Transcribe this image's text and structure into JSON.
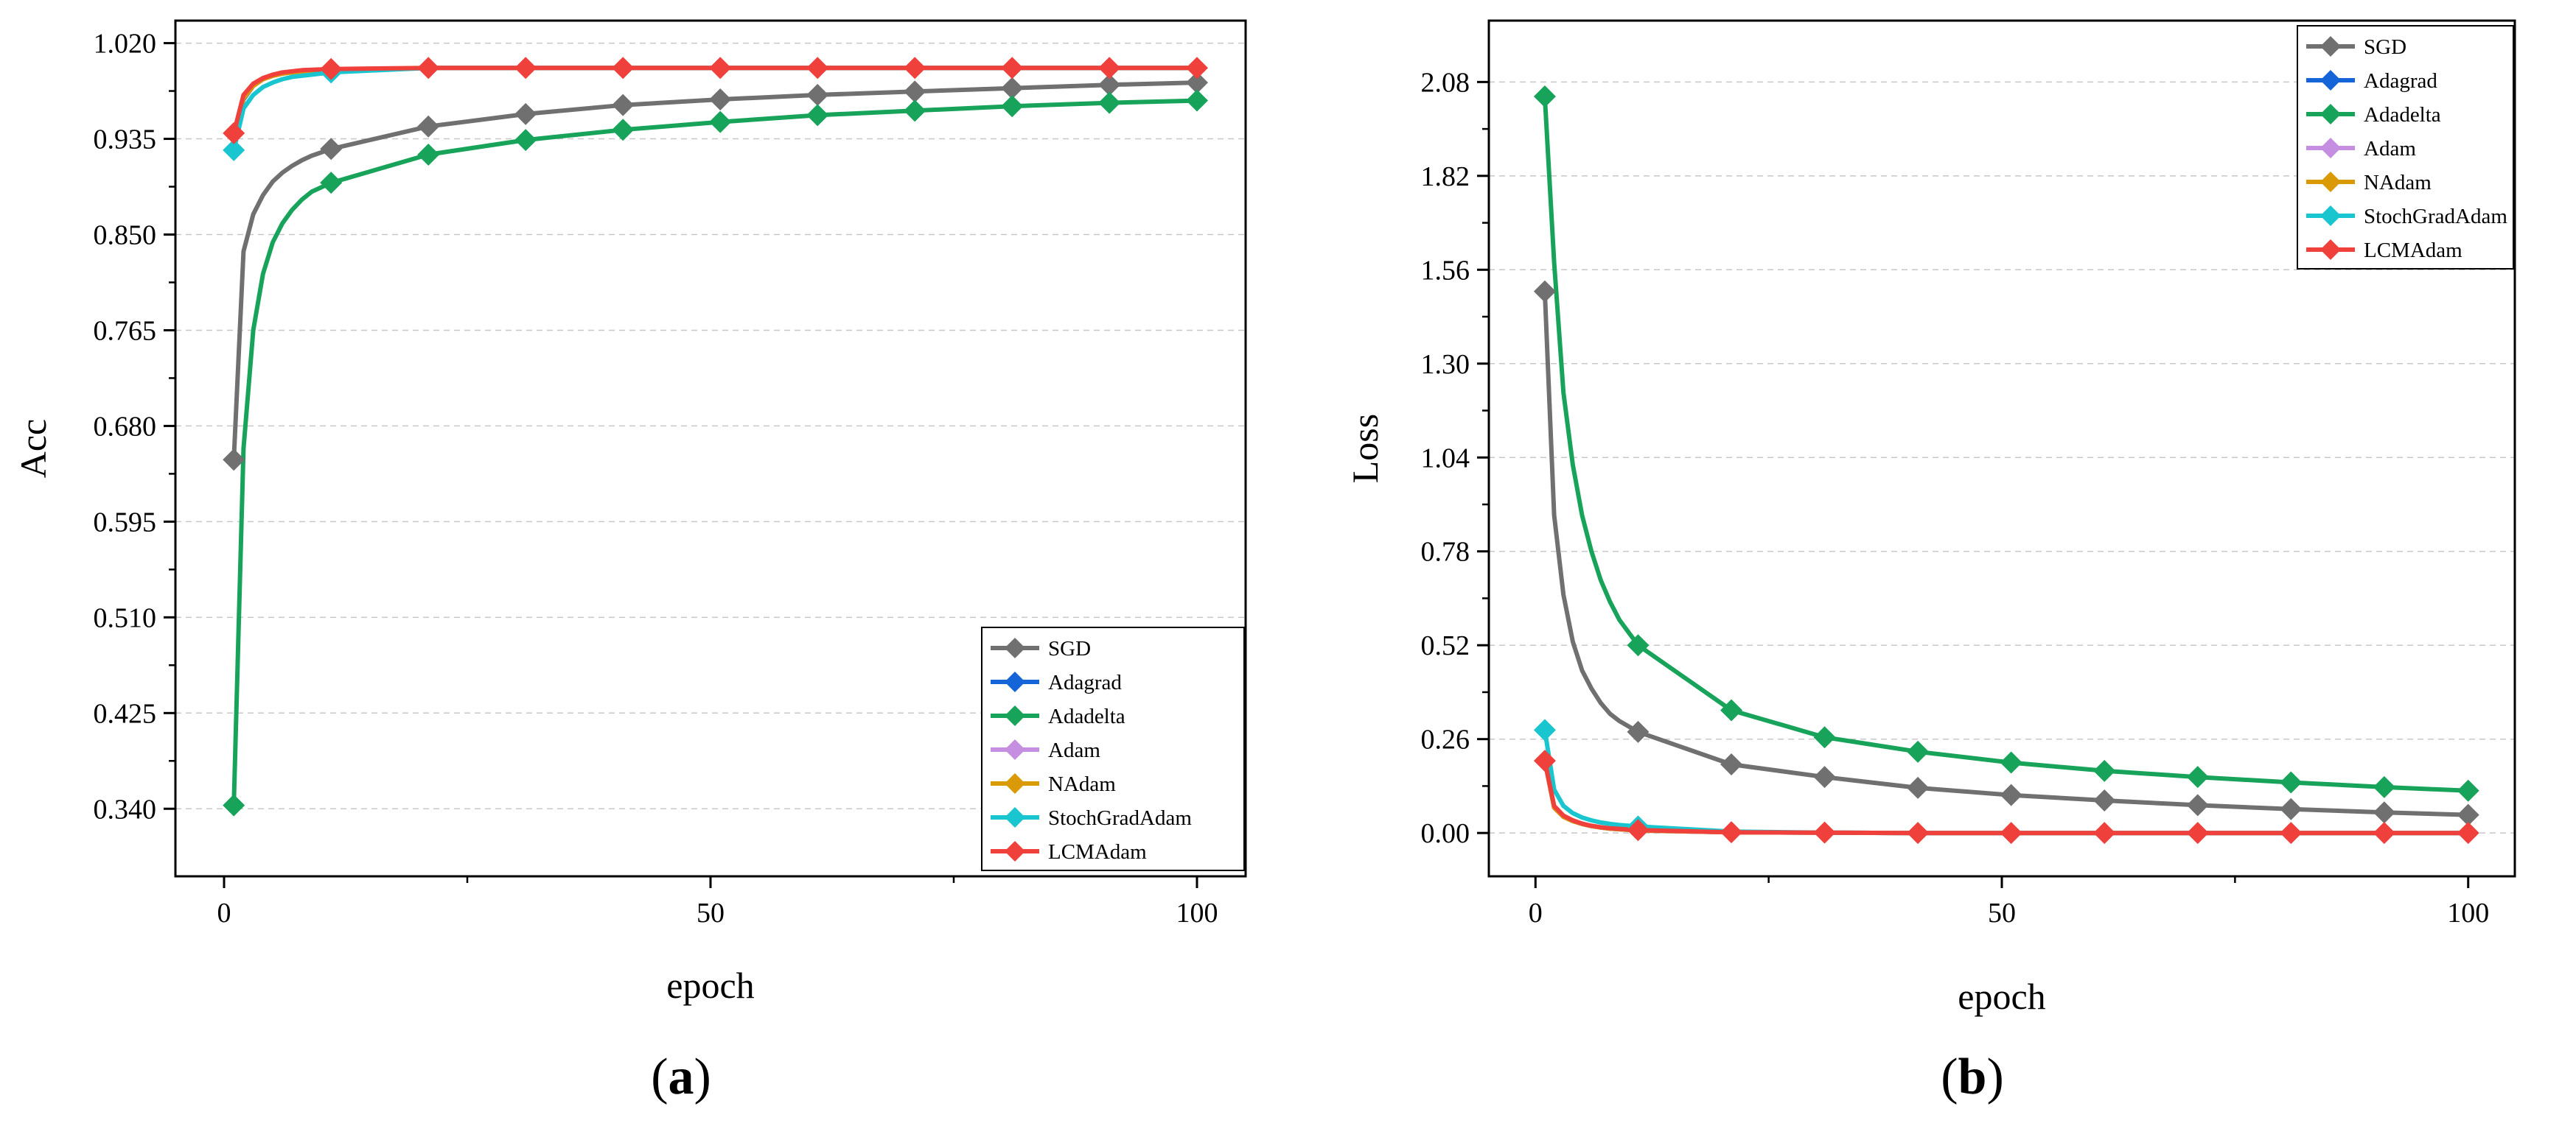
{
  "chart_data": [
    {
      "type": "line",
      "panel": "(a)",
      "panel_letter": "a",
      "xlabel": "epoch",
      "ylabel": "Acc",
      "xlim": [
        -5,
        105
      ],
      "ylim": [
        0.28,
        1.04
      ],
      "x_ticks": [
        0,
        50,
        100
      ],
      "y_ticks": [
        0.34,
        0.425,
        0.51,
        0.595,
        0.68,
        0.765,
        0.85,
        0.935,
        1.02
      ],
      "y_tick_labels": [
        "0.340",
        "0.425",
        "0.510",
        "0.595",
        "0.680",
        "0.765",
        "0.850",
        "0.935",
        "1.020"
      ],
      "grid": true,
      "legend_position": "bottom-right",
      "series": [
        {
          "name": "SGD",
          "color": "#707070",
          "x": [
            1,
            2,
            3,
            4,
            5,
            6,
            7,
            8,
            9,
            11,
            21,
            31,
            41,
            51,
            61,
            71,
            81,
            91,
            100
          ],
          "y": [
            0.65,
            0.835,
            0.868,
            0.885,
            0.897,
            0.905,
            0.911,
            0.916,
            0.92,
            0.926,
            0.946,
            0.957,
            0.965,
            0.97,
            0.974,
            0.977,
            0.98,
            0.983,
            0.985
          ],
          "markers": [
            0,
            9,
            10,
            11,
            12,
            13,
            14,
            15,
            16,
            17,
            18
          ]
        },
        {
          "name": "Adagrad",
          "color": "#1565d8",
          "x": [
            1,
            2,
            3,
            4,
            5,
            6,
            7,
            8,
            11,
            21,
            31,
            41,
            51,
            61,
            71,
            81,
            91,
            100
          ],
          "y": [
            0.94,
            0.97,
            0.982,
            0.988,
            0.991,
            0.993,
            0.994,
            0.995,
            0.996,
            0.998,
            0.998,
            0.998,
            0.998,
            0.998,
            0.998,
            0.998,
            0.998,
            0.998
          ],
          "markers": []
        },
        {
          "name": "Adadelta",
          "color": "#17a45a",
          "x": [
            1,
            2,
            3,
            4,
            5,
            6,
            7,
            8,
            9,
            11,
            21,
            31,
            41,
            51,
            61,
            71,
            81,
            91,
            100
          ],
          "y": [
            0.343,
            0.66,
            0.765,
            0.815,
            0.843,
            0.86,
            0.872,
            0.881,
            0.888,
            0.896,
            0.921,
            0.934,
            0.943,
            0.95,
            0.956,
            0.96,
            0.964,
            0.967,
            0.969
          ],
          "markers": [
            0,
            9,
            10,
            11,
            12,
            13,
            14,
            15,
            16,
            17,
            18
          ]
        },
        {
          "name": "Adam",
          "color": "#c58ee0",
          "x": [
            1,
            2,
            3,
            4,
            5,
            6,
            7,
            8,
            11,
            21,
            31,
            41,
            51,
            61,
            71,
            81,
            91,
            100
          ],
          "y": [
            0.94,
            0.971,
            0.982,
            0.988,
            0.991,
            0.993,
            0.994,
            0.995,
            0.996,
            0.998,
            0.998,
            0.998,
            0.998,
            0.998,
            0.998,
            0.998,
            0.998,
            0.998
          ],
          "markers": []
        },
        {
          "name": "NAdam",
          "color": "#d99a06",
          "x": [
            1,
            2,
            3,
            4,
            5,
            6,
            7,
            8,
            11,
            21,
            31,
            41,
            51,
            61,
            71,
            81,
            91,
            100
          ],
          "y": [
            0.94,
            0.971,
            0.982,
            0.988,
            0.991,
            0.993,
            0.994,
            0.995,
            0.996,
            0.998,
            0.998,
            0.998,
            0.998,
            0.998,
            0.998,
            0.998,
            0.998,
            0.998
          ],
          "markers": []
        },
        {
          "name": "StochGradAdam",
          "color": "#19c6cf",
          "x": [
            1,
            2,
            3,
            4,
            5,
            6,
            7,
            8,
            9,
            11,
            21,
            31,
            41,
            51,
            61,
            71,
            81,
            91,
            100
          ],
          "y": [
            0.925,
            0.962,
            0.974,
            0.981,
            0.985,
            0.988,
            0.99,
            0.991,
            0.992,
            0.994,
            0.998,
            0.998,
            0.998,
            0.998,
            0.998,
            0.998,
            0.998,
            0.998,
            0.998
          ],
          "markers": [
            0,
            9
          ]
        },
        {
          "name": "LCMAdam",
          "color": "#f0403c",
          "x": [
            1,
            2,
            3,
            4,
            5,
            6,
            7,
            8,
            11,
            21,
            31,
            41,
            51,
            61,
            71,
            81,
            91,
            100
          ],
          "y": [
            0.94,
            0.974,
            0.984,
            0.989,
            0.992,
            0.994,
            0.995,
            0.996,
            0.997,
            0.998,
            0.998,
            0.998,
            0.998,
            0.998,
            0.998,
            0.998,
            0.998,
            0.998
          ],
          "markers": [
            0,
            8,
            9,
            10,
            11,
            12,
            13,
            14,
            15,
            16,
            17
          ]
        }
      ]
    },
    {
      "type": "line",
      "panel": "(b)",
      "panel_letter": "b",
      "xlabel": "epoch",
      "ylabel": "Loss",
      "xlim": [
        -5,
        105
      ],
      "ylim": [
        -0.12,
        2.25
      ],
      "x_ticks": [
        0,
        50,
        100
      ],
      "y_ticks": [
        0.0,
        0.26,
        0.52,
        0.78,
        1.04,
        1.3,
        1.56,
        1.82,
        2.08
      ],
      "y_tick_labels": [
        "0.00",
        "0.26",
        "0.52",
        "0.78",
        "1.04",
        "1.30",
        "1.56",
        "1.82",
        "2.08"
      ],
      "grid": true,
      "legend_position": "top-right",
      "series": [
        {
          "name": "SGD",
          "color": "#707070",
          "x": [
            1,
            2,
            3,
            4,
            5,
            6,
            7,
            8,
            9,
            11,
            21,
            31,
            41,
            51,
            61,
            71,
            81,
            91,
            100
          ],
          "y": [
            1.5,
            0.88,
            0.66,
            0.53,
            0.45,
            0.4,
            0.36,
            0.33,
            0.31,
            0.28,
            0.19,
            0.155,
            0.125,
            0.105,
            0.09,
            0.077,
            0.066,
            0.057,
            0.05
          ],
          "markers": [
            0,
            9,
            10,
            11,
            12,
            13,
            14,
            15,
            16,
            17,
            18
          ]
        },
        {
          "name": "Adagrad",
          "color": "#1565d8",
          "x": [
            1,
            2,
            3,
            4,
            5,
            6,
            7,
            8,
            11,
            21,
            31,
            41,
            51,
            61,
            71,
            81,
            91,
            100
          ],
          "y": [
            0.2,
            0.07,
            0.045,
            0.033,
            0.025,
            0.019,
            0.015,
            0.012,
            0.007,
            0.002,
            0.001,
            0.0,
            0.0,
            0.0,
            0.0,
            0.0,
            0.0,
            0.0
          ],
          "markers": []
        },
        {
          "name": "Adadelta",
          "color": "#17a45a",
          "x": [
            1,
            2,
            3,
            4,
            5,
            6,
            7,
            8,
            9,
            11,
            21,
            31,
            41,
            51,
            61,
            71,
            81,
            91,
            100
          ],
          "y": [
            2.04,
            1.58,
            1.22,
            1.02,
            0.88,
            0.78,
            0.7,
            0.64,
            0.59,
            0.52,
            0.34,
            0.265,
            0.225,
            0.195,
            0.172,
            0.155,
            0.14,
            0.127,
            0.117
          ],
          "markers": [
            0,
            9,
            10,
            11,
            12,
            13,
            14,
            15,
            16,
            17,
            18
          ]
        },
        {
          "name": "Adam",
          "color": "#c58ee0",
          "x": [
            1,
            2,
            3,
            4,
            5,
            6,
            7,
            8,
            11,
            21,
            31,
            41,
            51,
            61,
            71,
            81,
            91,
            100
          ],
          "y": [
            0.2,
            0.07,
            0.045,
            0.033,
            0.025,
            0.019,
            0.015,
            0.012,
            0.007,
            0.002,
            0.001,
            0.0,
            0.0,
            0.0,
            0.0,
            0.0,
            0.0,
            0.0
          ],
          "markers": []
        },
        {
          "name": "NAdam",
          "color": "#d99a06",
          "x": [
            1,
            2,
            3,
            4,
            5,
            6,
            7,
            8,
            11,
            21,
            31,
            41,
            51,
            61,
            71,
            81,
            91,
            100
          ],
          "y": [
            0.2,
            0.07,
            0.045,
            0.033,
            0.025,
            0.019,
            0.015,
            0.012,
            0.007,
            0.002,
            0.001,
            0.0,
            0.0,
            0.0,
            0.0,
            0.0,
            0.0,
            0.0
          ],
          "markers": []
        },
        {
          "name": "StochGradAdam",
          "color": "#19c6cf",
          "x": [
            1,
            2,
            3,
            4,
            5,
            6,
            7,
            8,
            9,
            11,
            21,
            31,
            41,
            51,
            61,
            71,
            81,
            91,
            100
          ],
          "y": [
            0.285,
            0.12,
            0.075,
            0.055,
            0.043,
            0.035,
            0.029,
            0.025,
            0.022,
            0.018,
            0.004,
            0.001,
            0.0,
            0.0,
            0.0,
            0.0,
            0.0,
            0.0,
            0.0
          ],
          "markers": [
            0,
            9
          ]
        },
        {
          "name": "LCMAdam",
          "color": "#f0403c",
          "x": [
            1,
            2,
            3,
            4,
            5,
            6,
            7,
            8,
            11,
            21,
            31,
            41,
            51,
            61,
            71,
            81,
            91,
            100
          ],
          "y": [
            0.2,
            0.075,
            0.048,
            0.035,
            0.026,
            0.02,
            0.016,
            0.013,
            0.008,
            0.002,
            0.001,
            0.0,
            0.0,
            0.0,
            0.0,
            0.0,
            0.0,
            0.0
          ],
          "markers": [
            0,
            8,
            9,
            10,
            11,
            12,
            13,
            14,
            15,
            16,
            17
          ]
        }
      ]
    }
  ]
}
